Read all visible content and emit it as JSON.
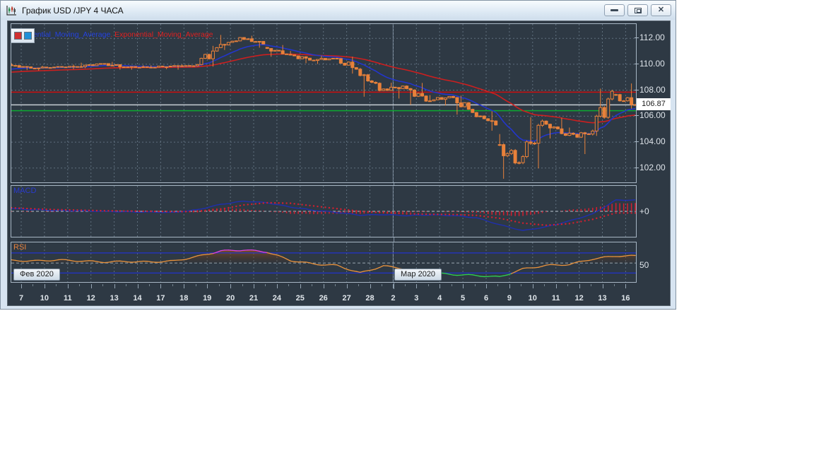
{
  "window": {
    "title": "График USD /JPY  4 ЧАСА"
  },
  "legend": {
    "fast_label": "Exponential_Moving_Average",
    "slow_label": "Exponential_Moving_Average",
    "fast_color": "#2442e0",
    "slow_color": "#e02020"
  },
  "panels": {
    "macd_label": "MACD",
    "rsi_label": "RSI",
    "macd_axis_label": "+0",
    "rsi_axis_label": "50"
  },
  "months": {
    "feb": "Фев 2020",
    "mar": "Мар 2020"
  },
  "colors": {
    "chart_bg": "#2e3944",
    "grid": "#5f6f7d",
    "candle": "#e8813a",
    "ema_fast": "#2336cc",
    "ema_slow": "#cc1f1f",
    "level_red": "#cc0f0f",
    "level_silver": "#c7cdd3",
    "level_green": "#0caa30",
    "macd_line": "#1f2fae",
    "macd_signal": "#d41f2f",
    "rsi_line": "#e8923c",
    "rsi_overbought": "#e040e0",
    "rsi_oversold": "#30d050",
    "rsi_band": "#2233cc"
  },
  "chart_data": {
    "type": "candlestick",
    "symbol": "USD/JPY",
    "timeframe": "4H",
    "current_price": "106.87",
    "price_axis_ticks": [
      "112.00",
      "110.00",
      "108.00",
      "106.00",
      "104.00",
      "102.00"
    ],
    "price_axis_values": [
      112,
      110,
      108,
      106,
      104,
      102
    ],
    "ylim": [
      100.9,
      113.1
    ],
    "candles_per_day": 6,
    "month_separator_day_index": 16,
    "levels": [
      {
        "price": 107.85,
        "color": "#cc0f0f"
      },
      {
        "price": 106.87,
        "color": "#c7cdd3"
      },
      {
        "price": 106.42,
        "color": "#0caa30"
      }
    ],
    "ema_fast_period": 14,
    "ema_slow_period": 45,
    "ema_fast_seed": 109.58,
    "ema_slow_seed": 109.37,
    "days": [
      {
        "date": "7",
        "o": 109.95,
        "h": 110.08,
        "l": 109.55,
        "c": 109.7
      },
      {
        "date": "10",
        "o": 109.7,
        "h": 109.88,
        "l": 109.52,
        "c": 109.78
      },
      {
        "date": "11",
        "o": 109.78,
        "h": 109.98,
        "l": 109.62,
        "c": 109.82
      },
      {
        "date": "12",
        "o": 109.82,
        "h": 110.12,
        "l": 109.7,
        "c": 110.05
      },
      {
        "date": "13",
        "o": 110.05,
        "h": 110.18,
        "l": 109.58,
        "c": 109.8
      },
      {
        "date": "14",
        "o": 109.8,
        "h": 109.92,
        "l": 109.58,
        "c": 109.76
      },
      {
        "date": "17",
        "o": 109.76,
        "h": 109.92,
        "l": 109.62,
        "c": 109.86
      },
      {
        "date": "18",
        "o": 109.86,
        "h": 109.98,
        "l": 109.58,
        "c": 109.88
      },
      {
        "date": "19",
        "o": 109.88,
        "h": 111.42,
        "l": 109.82,
        "c": 111.28
      },
      {
        "date": "20",
        "o": 111.28,
        "h": 112.26,
        "l": 111.1,
        "c": 112.06
      },
      {
        "date": "21",
        "o": 112.06,
        "h": 112.2,
        "l": 111.28,
        "c": 111.56
      },
      {
        "date": "24",
        "o": 111.3,
        "h": 111.48,
        "l": 110.58,
        "c": 110.76
      },
      {
        "date": "25",
        "o": 110.76,
        "h": 111.02,
        "l": 110.08,
        "c": 110.32
      },
      {
        "date": "26",
        "o": 110.32,
        "h": 110.66,
        "l": 110.02,
        "c": 110.46
      },
      {
        "date": "27",
        "o": 110.46,
        "h": 110.58,
        "l": 109.28,
        "c": 109.62
      },
      {
        "date": "28",
        "o": 109.62,
        "h": 109.72,
        "l": 107.5,
        "c": 107.98
      },
      {
        "date": "2",
        "o": 107.98,
        "h": 108.58,
        "l": 107.36,
        "c": 108.32
      },
      {
        "date": "3",
        "o": 108.32,
        "h": 108.56,
        "l": 106.88,
        "c": 107.16
      },
      {
        "date": "4",
        "o": 107.16,
        "h": 107.62,
        "l": 106.82,
        "c": 107.52
      },
      {
        "date": "5",
        "o": 107.52,
        "h": 107.58,
        "l": 106.12,
        "c": 106.28
      },
      {
        "date": "6",
        "o": 106.28,
        "h": 106.38,
        "l": 104.88,
        "c": 105.32
      },
      {
        "date": "9",
        "o": 103.8,
        "h": 104.62,
        "l": 101.18,
        "c": 102.42
      },
      {
        "date": "10",
        "o": 102.42,
        "h": 105.92,
        "l": 101.98,
        "c": 105.62
      },
      {
        "date": "11",
        "o": 105.62,
        "h": 105.88,
        "l": 104.28,
        "c": 104.52
      },
      {
        "date": "12",
        "o": 104.52,
        "h": 105.12,
        "l": 103.08,
        "c": 104.62
      },
      {
        "date": "13",
        "o": 104.62,
        "h": 108.12,
        "l": 104.48,
        "c": 107.92
      },
      {
        "date": "16",
        "o": 107.62,
        "h": 108.52,
        "l": 106.58,
        "c": 106.87
      }
    ],
    "macd": {
      "ylim": [
        -0.95,
        0.95
      ],
      "zero_label": "+0",
      "line": [
        0.1,
        0.06,
        0.03,
        0.02,
        0.0,
        -0.02,
        -0.03,
        -0.04,
        0.06,
        0.26,
        0.38,
        0.32,
        0.16,
        0.04,
        -0.04,
        -0.14,
        -0.12,
        -0.16,
        -0.13,
        -0.16,
        -0.24,
        -0.5,
        -0.72,
        -0.58,
        -0.36,
        -0.1,
        0.42
      ],
      "signal": [
        0.13,
        0.09,
        0.06,
        0.04,
        0.02,
        0.01,
        0.0,
        -0.01,
        -0.01,
        0.08,
        0.24,
        0.32,
        0.3,
        0.2,
        0.1,
        0.0,
        -0.05,
        -0.09,
        -0.11,
        -0.12,
        -0.15,
        -0.26,
        -0.44,
        -0.52,
        -0.46,
        -0.3,
        -0.06
      ]
    },
    "rsi": {
      "ylim": [
        12,
        91
      ],
      "upper": 70,
      "mid": 50,
      "lower": 30,
      "mid_label": "50",
      "values": [
        55,
        54,
        56,
        54,
        52,
        53,
        52,
        54,
        63,
        74,
        76,
        72,
        55,
        48,
        45,
        30,
        44,
        38,
        30,
        27,
        25,
        22,
        38,
        45,
        47,
        58,
        64
      ]
    }
  }
}
